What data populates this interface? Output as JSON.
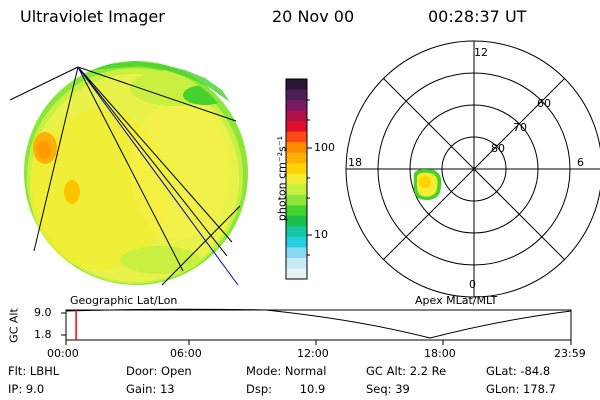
{
  "header": {
    "instrument": "Ultraviolet Imager",
    "date": "20 Nov 00",
    "time": "00:28:37 UT"
  },
  "colorbar": {
    "label": "photon cm⁻²s⁻¹",
    "ticks": [
      "100",
      "10"
    ],
    "colors": [
      "#2a1535",
      "#4b1f57",
      "#7a1a64",
      "#b0104a",
      "#e0102d",
      "#ff4a10",
      "#ff8a00",
      "#ffb000",
      "#ffd400",
      "#f4ee30",
      "#c9f040",
      "#8ce63a",
      "#45d22e",
      "#18c24a",
      "#16c7a3",
      "#26cfe0",
      "#8ad8f0",
      "#c8eaf4",
      "#e6f3f6"
    ]
  },
  "geo_panel": {
    "caption": "Geographic Lat/Lon"
  },
  "polar_panel": {
    "caption": "Apex MLat/MLT",
    "mlt_labels": {
      "top": "12",
      "left": "18",
      "right": "6",
      "bottom": "0"
    },
    "lat_labels": [
      "60",
      "70",
      "80"
    ]
  },
  "timeline": {
    "axis_label": "GC Alt",
    "y_ticks": [
      "9.0",
      "1.8"
    ],
    "x_ticks": [
      "00:00",
      "06:00",
      "12:00",
      "18:00",
      "23:59"
    ],
    "current_fraction": 0.02
  },
  "info": {
    "filter": {
      "label": "Flt:",
      "value": "LBHL"
    },
    "ip": {
      "label": "IP:",
      "value": "9.0"
    },
    "door": {
      "label": "Door:",
      "value": "Open"
    },
    "gain": {
      "label": "Gain:",
      "value": "13"
    },
    "mode": {
      "label": "Mode:",
      "value": "Normal"
    },
    "dsp": {
      "label": "Dsp:",
      "value": "10.9"
    },
    "gc_alt": {
      "label": "GC Alt:",
      "value": "2.2 Re"
    },
    "seq": {
      "label": "Seq:",
      "value": "39"
    },
    "glat": {
      "label": "GLat:",
      "value": "-84.8"
    },
    "glon": {
      "label": "GLon:",
      "value": "178.7"
    }
  },
  "colors": {
    "accent_red": "#ff0000",
    "accent_blue": "#0000cc"
  }
}
